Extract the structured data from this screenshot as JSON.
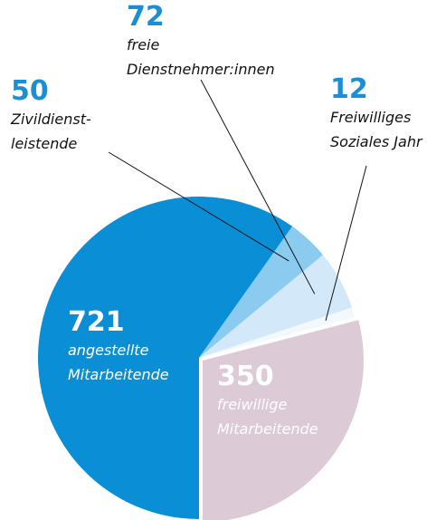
{
  "chart_data": {
    "type": "pie",
    "values": [
      721,
      50,
      72,
      12,
      350
    ],
    "labels": [
      [
        "angestellte",
        "Mitarbeitende"
      ],
      [
        "Zivildienst-",
        "leistende"
      ],
      [
        "freie",
        "Dienstnehmer:innen"
      ],
      [
        "Freiwilliges",
        "Soziales Jahr"
      ],
      [
        "freiwillige",
        "Mitarbeitende"
      ]
    ],
    "colors": [
      "#0a8fd6",
      "#8ccbf0",
      "#d3e9f9",
      "#f3f8fc",
      "#dccad6"
    ]
  }
}
